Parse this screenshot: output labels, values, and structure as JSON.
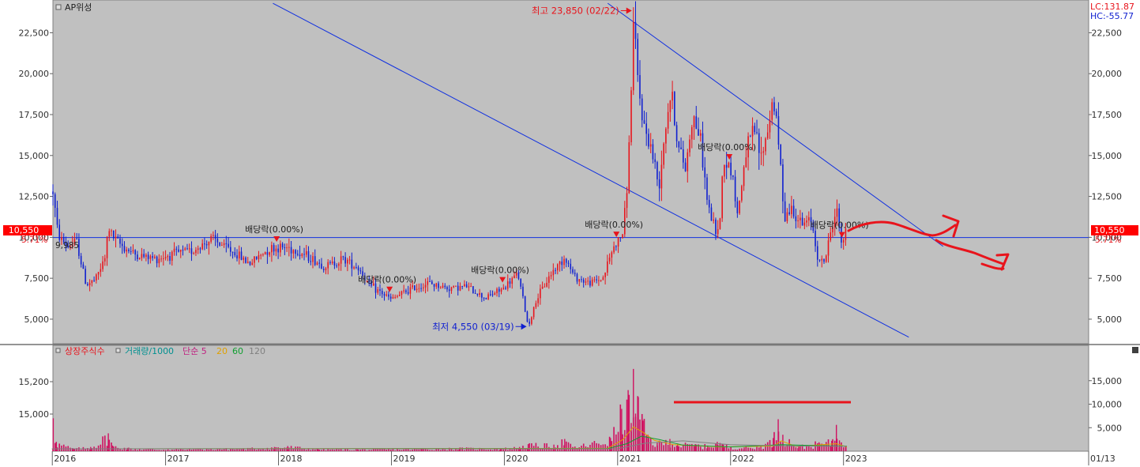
{
  "colors": {
    "plot_bg": "#c0c0c0",
    "frame": "#808080",
    "up": "#e8141c",
    "down": "#1020d0",
    "trend": "#1030e0",
    "annotation_red": "#e8141c",
    "axis_text": "#303030",
    "volume": "#d01060",
    "ma5": "#c02080",
    "ma20": "#e0a000",
    "ma60": "#10a030",
    "ma120": "#808080",
    "listed": "#e8141c",
    "volume_label": "#009090"
  },
  "chart_data": [
    {
      "type": "candlestick",
      "title": "AP위성",
      "x_ticks": [
        "2016",
        "2017",
        "2018",
        "2019",
        "2020",
        "2021",
        "2022",
        "2023",
        "01/13"
      ],
      "y_ticks": [
        "5,000",
        "7,500",
        "10,000",
        "12,500",
        "15,000",
        "17,500",
        "20,000",
        "22,500"
      ],
      "ylim": [
        3500,
        24500
      ],
      "y_scale": "linear",
      "grid": false,
      "current_price": {
        "label": "10,550",
        "value": 10550
      },
      "current_pct": "5.71%",
      "indicator_labels": [
        "LC:131.87",
        "HC:-55.77"
      ],
      "price_markers": [
        "9,985"
      ],
      "max": {
        "label": "최고 23,850 (02/22)",
        "value": 23850,
        "date": "2021-02-22"
      },
      "min": {
        "label": "최저 4,550 (03/19)",
        "value": 4550,
        "date": "2020-03-19"
      },
      "dividend_label": "배당락(0.00%)",
      "dividend_dates": [
        "2017-12-27",
        "2018-12-27",
        "2019-12-27",
        "2020-12-29",
        "2021-12-29",
        "2022-12-28"
      ],
      "horizontal_line": 9985,
      "trend_lines": [
        {
          "from": [
            "2017-12-15",
            24300
          ],
          "to": [
            "2023-08-01",
            3900
          ]
        },
        {
          "from": [
            "2020-12-01",
            24300
          ],
          "to": [
            "2023-11-20",
            9450
          ]
        }
      ],
      "close_points": [
        [
          "2016-01-04",
          12800
        ],
        [
          "2016-01-20",
          10200
        ],
        [
          "2016-02-20",
          9400
        ],
        [
          "2016-03-20",
          9800
        ],
        [
          "2016-04-20",
          7100
        ],
        [
          "2016-05-20",
          7400
        ],
        [
          "2016-06-20",
          8700
        ],
        [
          "2016-07-01",
          10600
        ],
        [
          "2016-07-20",
          9900
        ],
        [
          "2016-08-20",
          9400
        ],
        [
          "2016-10-01",
          8900
        ],
        [
          "2016-12-01",
          8700
        ],
        [
          "2017-02-01",
          9000
        ],
        [
          "2017-04-01",
          9200
        ],
        [
          "2017-06-01",
          9900
        ],
        [
          "2017-08-01",
          9200
        ],
        [
          "2017-10-01",
          8400
        ],
        [
          "2017-12-01",
          9300
        ],
        [
          "2018-02-01",
          9400
        ],
        [
          "2018-04-01",
          8900
        ],
        [
          "2018-06-01",
          8200
        ],
        [
          "2018-08-01",
          8700
        ],
        [
          "2018-09-20",
          8100
        ],
        [
          "2018-10-20",
          7100
        ],
        [
          "2018-12-01",
          6600
        ],
        [
          "2019-01-01",
          6200
        ],
        [
          "2019-03-01",
          6800
        ],
        [
          "2019-05-01",
          7200
        ],
        [
          "2019-07-01",
          6900
        ],
        [
          "2019-09-01",
          7000
        ],
        [
          "2019-11-01",
          6300
        ],
        [
          "2020-01-01",
          6900
        ],
        [
          "2020-02-15",
          7800
        ],
        [
          "2020-03-19",
          4550
        ],
        [
          "2020-04-15",
          6200
        ],
        [
          "2020-06-01",
          7800
        ],
        [
          "2020-07-15",
          8800
        ],
        [
          "2020-08-15",
          7600
        ],
        [
          "2020-10-01",
          7200
        ],
        [
          "2020-11-15",
          7500
        ],
        [
          "2020-12-15",
          9200
        ],
        [
          "2021-01-20",
          10300
        ],
        [
          "2021-02-05",
          14000
        ],
        [
          "2021-02-22",
          23000
        ],
        [
          "2021-03-10",
          19200
        ],
        [
          "2021-03-25",
          17000
        ],
        [
          "2021-04-20",
          15500
        ],
        [
          "2021-05-15",
          13100
        ],
        [
          "2021-06-05",
          16800
        ],
        [
          "2021-06-25",
          19000
        ],
        [
          "2021-07-15",
          15600
        ],
        [
          "2021-08-10",
          14200
        ],
        [
          "2021-09-01",
          17500
        ],
        [
          "2021-09-25",
          16200
        ],
        [
          "2021-10-20",
          12000
        ],
        [
          "2021-11-10",
          10600
        ],
        [
          "2021-11-25",
          10200
        ],
        [
          "2021-12-10",
          14800
        ],
        [
          "2022-01-05",
          14200
        ],
        [
          "2022-01-25",
          11300
        ],
        [
          "2022-02-20",
          15200
        ],
        [
          "2022-03-20",
          16600
        ],
        [
          "2022-04-10",
          14800
        ],
        [
          "2022-05-01",
          16500
        ],
        [
          "2022-05-20",
          18600
        ],
        [
          "2022-06-10",
          15000
        ],
        [
          "2022-06-25",
          11300
        ],
        [
          "2022-07-20",
          11800
        ],
        [
          "2022-08-20",
          10700
        ],
        [
          "2022-09-20",
          11100
        ],
        [
          "2022-10-15",
          8400
        ],
        [
          "2022-11-05",
          8700
        ],
        [
          "2022-11-25",
          10700
        ],
        [
          "2022-12-10",
          11700
        ],
        [
          "2022-12-28",
          9600
        ],
        [
          "2023-01-13",
          10550
        ]
      ]
    },
    {
      "type": "bar",
      "legend": [
        {
          "label": "상장주식수",
          "color": "#e8141c"
        },
        {
          "label": "거래량/1000",
          "color": "#009090"
        },
        {
          "label": "단순 5",
          "color": "#c02080"
        },
        {
          "label": "20",
          "color": "#e0a000"
        },
        {
          "label": "60",
          "color": "#10a030"
        },
        {
          "label": "120",
          "color": "#808080"
        }
      ],
      "left_ticks": [
        "15,200",
        "15,000"
      ],
      "right_ticks": [
        "5,000",
        "10,000",
        "15,000"
      ],
      "ylim": [
        0,
        20000
      ],
      "grid": false,
      "volume_points": [
        [
          "2016-01-05",
          7000
        ],
        [
          "2016-01-15",
          2000
        ],
        [
          "2016-03-10",
          600
        ],
        [
          "2016-05-05",
          900
        ],
        [
          "2016-07-01",
          3800
        ],
        [
          "2016-07-15",
          1200
        ],
        [
          "2016-09-01",
          700
        ],
        [
          "2016-10-10",
          500
        ],
        [
          "2017-01-10",
          400
        ],
        [
          "2017-04-10",
          500
        ],
        [
          "2017-09-10",
          600
        ],
        [
          "2017-12-20",
          900
        ],
        [
          "2018-02-01",
          1100
        ],
        [
          "2018-05-10",
          500
        ],
        [
          "2018-09-15",
          400
        ],
        [
          "2019-04-10",
          500
        ],
        [
          "2019-08-10",
          700
        ],
        [
          "2019-12-20",
          600
        ],
        [
          "2020-02-20",
          900
        ],
        [
          "2020-03-19",
          1500
        ],
        [
          "2020-06-10",
          1400
        ],
        [
          "2020-07-15",
          2600
        ],
        [
          "2020-08-10",
          900
        ],
        [
          "2020-12-10",
          2800
        ],
        [
          "2021-01-15",
          9000
        ],
        [
          "2021-01-25",
          4500
        ],
        [
          "2021-02-05",
          13000
        ],
        [
          "2021-02-15",
          6000
        ],
        [
          "2021-02-22",
          17500
        ],
        [
          "2021-03-01",
          8000
        ],
        [
          "2021-03-10",
          11500
        ],
        [
          "2021-03-25",
          6500
        ],
        [
          "2021-04-10",
          3500
        ],
        [
          "2021-05-10",
          1800
        ],
        [
          "2021-06-20",
          2600
        ],
        [
          "2021-07-15",
          1600
        ],
        [
          "2021-09-10",
          1500
        ],
        [
          "2021-10-20",
          1200
        ],
        [
          "2021-11-20",
          2000
        ],
        [
          "2021-12-10",
          1400
        ],
        [
          "2022-02-15",
          800
        ],
        [
          "2022-04-10",
          1000
        ],
        [
          "2022-05-20",
          2800
        ],
        [
          "2022-06-05",
          6800
        ],
        [
          "2022-06-20",
          3500
        ],
        [
          "2022-08-10",
          1100
        ],
        [
          "2022-10-15",
          1900
        ],
        [
          "2022-11-25",
          2200
        ],
        [
          "2022-12-10",
          5600
        ],
        [
          "2022-12-20",
          2300
        ],
        [
          "2023-01-10",
          900
        ]
      ],
      "ma20_points": [
        [
          "2016-01-01",
          500
        ],
        [
          "2020-12-01",
          600
        ],
        [
          "2021-01-20",
          2500
        ],
        [
          "2021-02-22",
          5200
        ],
        [
          "2021-03-25",
          4000
        ],
        [
          "2021-05-01",
          2300
        ],
        [
          "2021-07-01",
          1400
        ],
        [
          "2021-12-01",
          900
        ],
        [
          "2022-05-20",
          1100
        ],
        [
          "2022-06-15",
          2200
        ],
        [
          "2022-08-01",
          1000
        ],
        [
          "2022-12-10",
          1600
        ],
        [
          "2023-01-13",
          900
        ]
      ],
      "ma60_points": [
        [
          "2016-01-01",
          500
        ],
        [
          "2020-12-01",
          550
        ],
        [
          "2021-02-01",
          1600
        ],
        [
          "2021-03-20",
          3200
        ],
        [
          "2021-05-15",
          2500
        ],
        [
          "2021-08-01",
          1300
        ],
        [
          "2022-01-01",
          900
        ],
        [
          "2022-06-20",
          1400
        ],
        [
          "2022-10-01",
          1200
        ],
        [
          "2023-01-13",
          1100
        ]
      ],
      "ma120_points": [
        [
          "2016-01-01",
          500
        ],
        [
          "2021-01-01",
          500
        ],
        [
          "2021-04-01",
          1700
        ],
        [
          "2021-08-01",
          2200
        ],
        [
          "2022-01-01",
          1400
        ],
        [
          "2022-08-01",
          1100
        ],
        [
          "2023-01-13",
          1050
        ]
      ]
    }
  ]
}
